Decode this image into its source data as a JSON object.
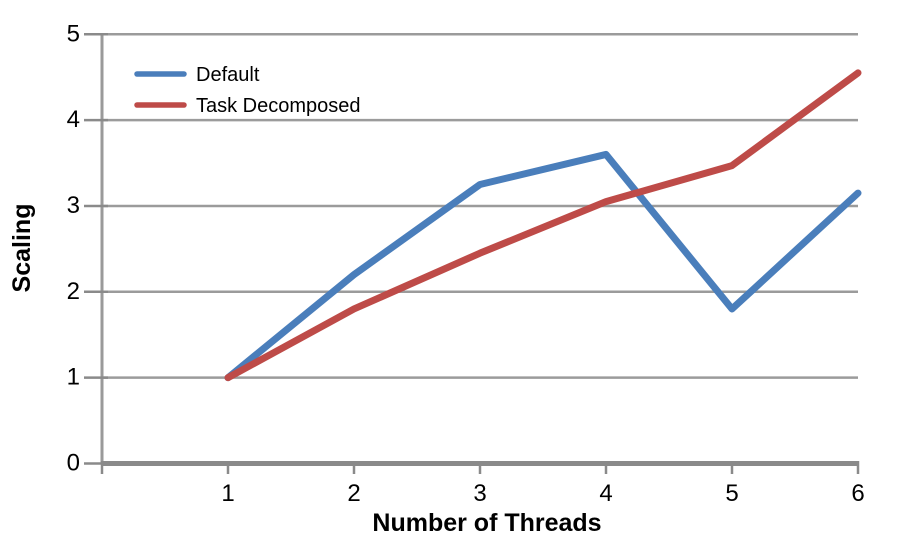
{
  "chart_data": {
    "type": "line",
    "title": "",
    "xlabel": "Number of Threads",
    "ylabel": "Scaling",
    "x": [
      1,
      2,
      3,
      4,
      5,
      6
    ],
    "xticks": [
      1,
      2,
      3,
      4,
      5,
      6
    ],
    "yticks": [
      0,
      1,
      2,
      3,
      4,
      5
    ],
    "xlim": [
      0,
      6
    ],
    "ylim": [
      0,
      5
    ],
    "grid": true,
    "legend_position": "top-left-inside",
    "series": [
      {
        "name": "Default",
        "color": "#4A7EBB",
        "values": [
          1.0,
          2.2,
          3.25,
          3.6,
          1.8,
          3.15
        ]
      },
      {
        "name": "Task Decomposed",
        "color": "#BE4B48",
        "values": [
          1.0,
          1.8,
          2.45,
          3.05,
          3.47,
          4.55
        ]
      }
    ]
  },
  "colors": {
    "background": "#FFFFFF",
    "gridline": "#9B9B9B",
    "x_axis": "#8A8A8A",
    "y_axis": "#9A9A9A",
    "tick": "#8A8A8A",
    "text": "#000000"
  }
}
